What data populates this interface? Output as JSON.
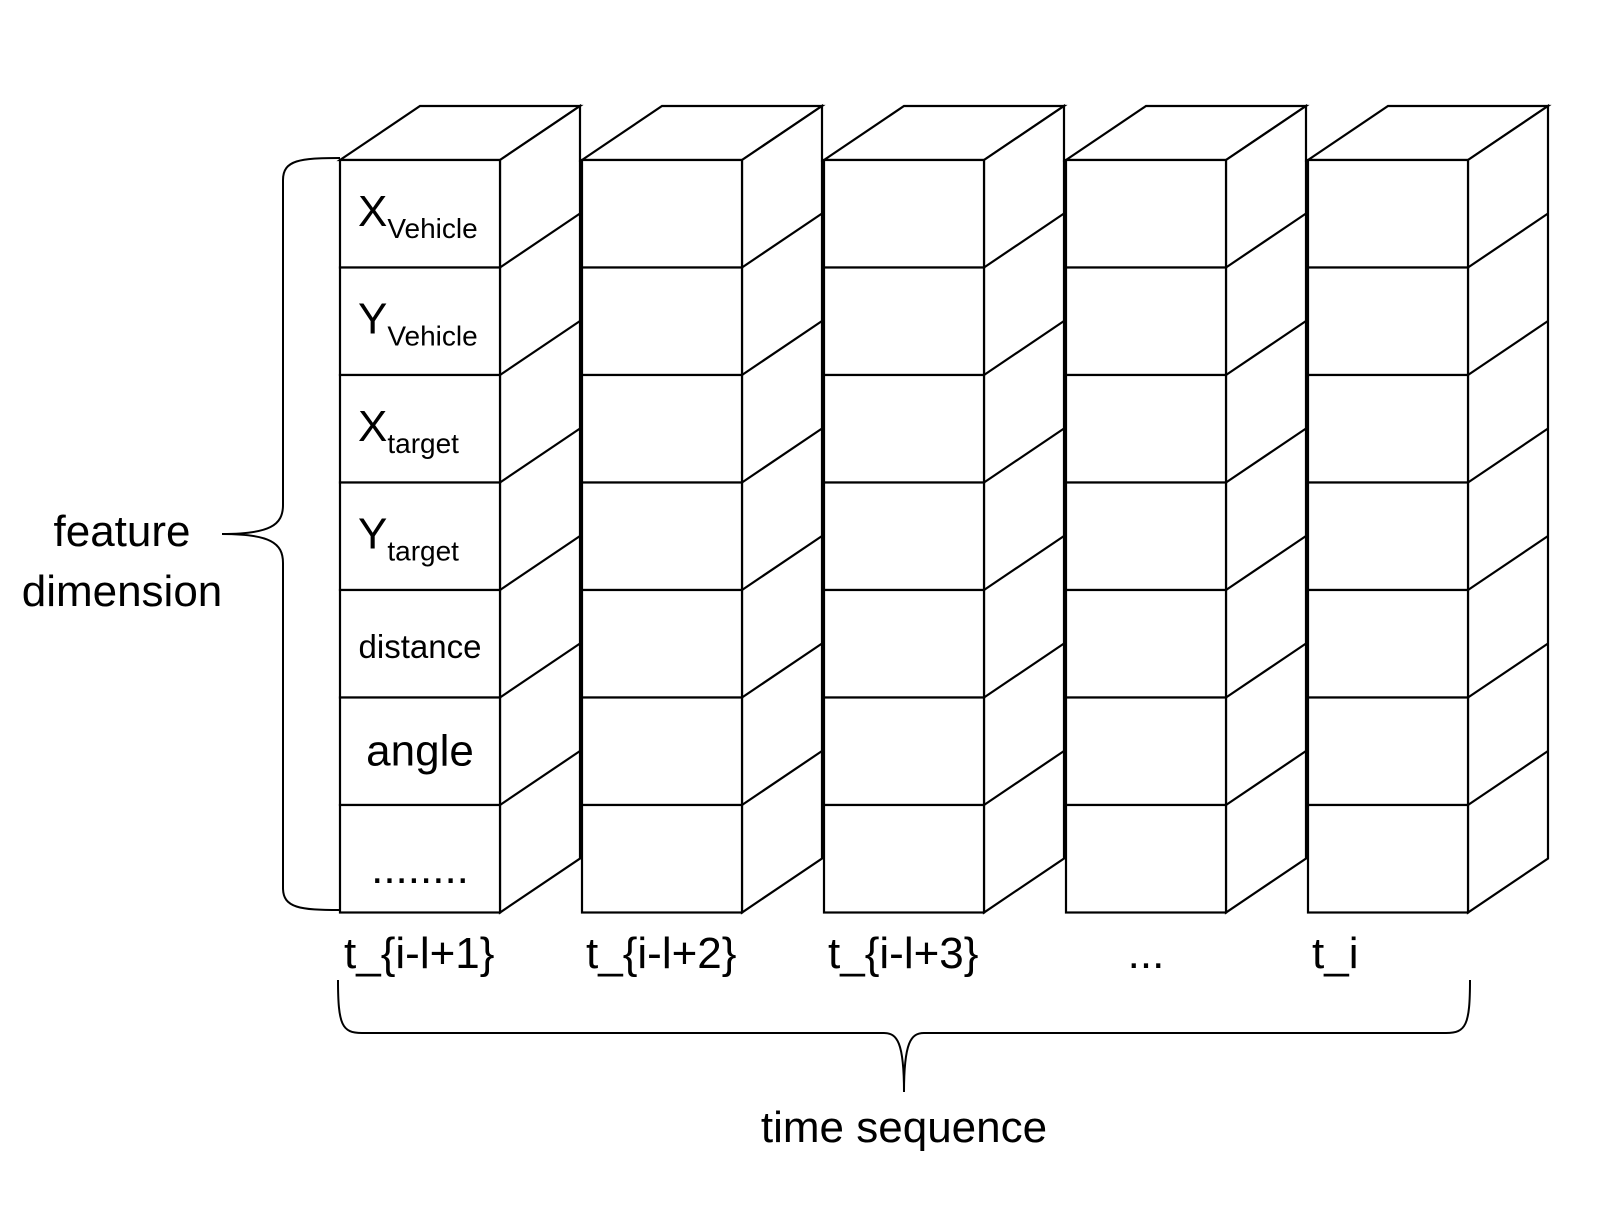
{
  "diagram": {
    "feature_axis_label": [
      "feature",
      "dimension"
    ],
    "time_axis_label": "time sequence",
    "feature_rows": [
      {
        "base": "X",
        "sub": "Vehicle"
      },
      {
        "base": "Y",
        "sub": "Vehicle"
      },
      {
        "base": "X",
        "sub": "target"
      },
      {
        "base": "Y",
        "sub": "target"
      },
      {
        "text": "distance"
      },
      {
        "text": "angle"
      },
      {
        "text": "........"
      }
    ],
    "time_steps": [
      "t_{i-l+1}",
      "t_{i-l+2}",
      "t_{i-l+3}",
      "...",
      "t_i"
    ],
    "colors": {
      "stroke": "#000000",
      "fill": "#ffffff"
    }
  }
}
